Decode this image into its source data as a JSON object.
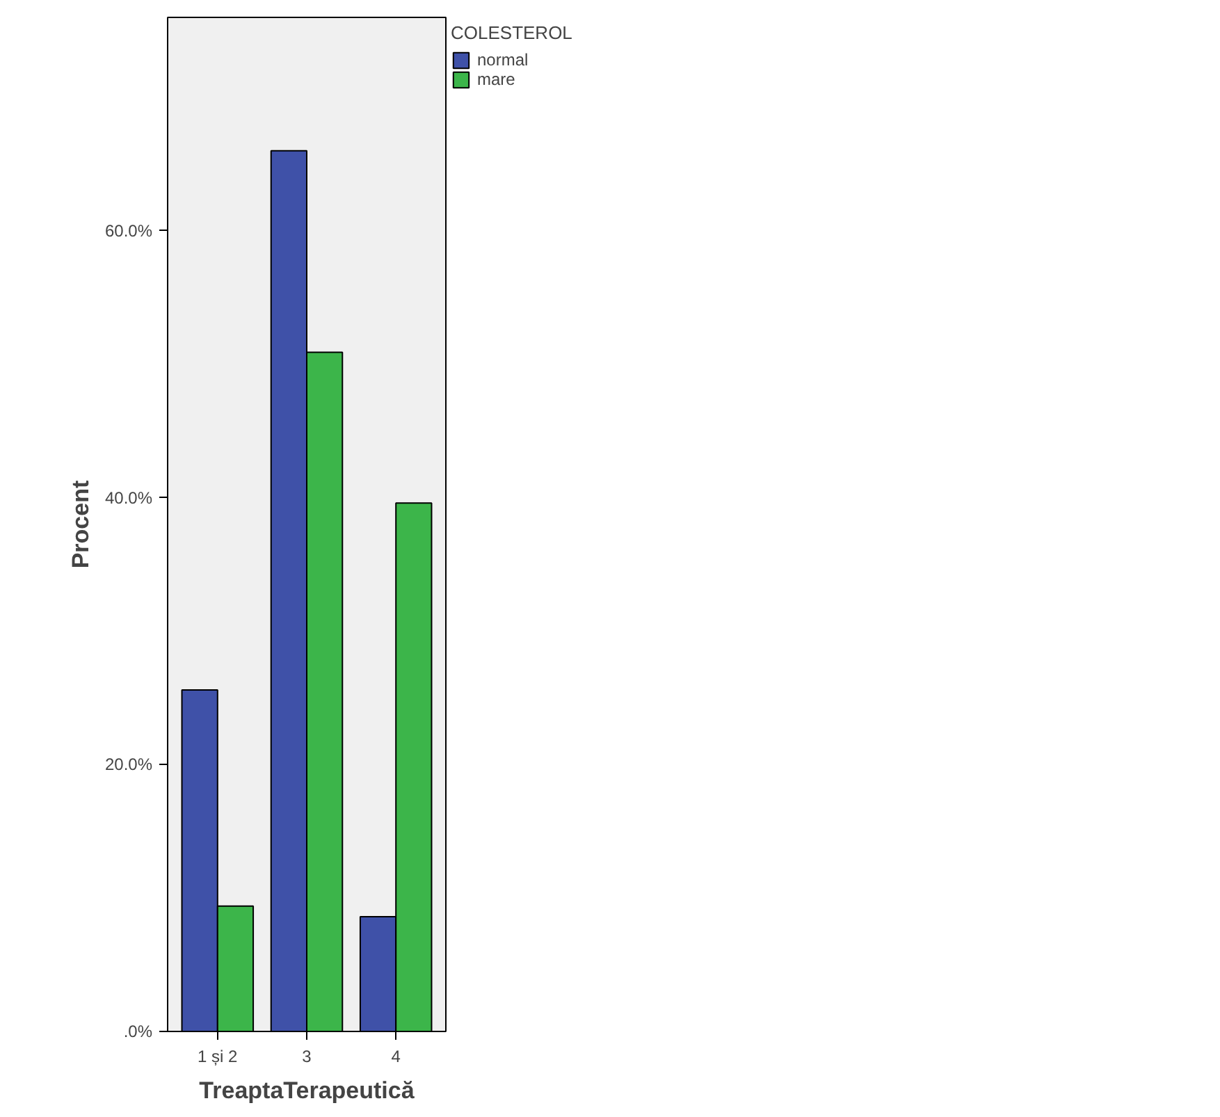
{
  "chart_data": {
    "type": "bar",
    "xlabel": "TreaptaTerapeutică",
    "ylabel": "Procent",
    "legend_title": "COLESTEROL",
    "categories": [
      "1 și 2",
      "3",
      "4"
    ],
    "series": [
      {
        "name": "normal",
        "color": "#3f51a8",
        "values": [
          25.6,
          66.0,
          8.6
        ]
      },
      {
        "name": "mare",
        "color": "#3cb54a",
        "values": [
          9.4,
          50.9,
          39.6
        ]
      }
    ],
    "ylim": [
      0,
      76
    ],
    "yticks": [
      {
        "value": 0,
        "label": ".0%"
      },
      {
        "value": 20,
        "label": "20.0%"
      },
      {
        "value": 40,
        "label": "40.0%"
      },
      {
        "value": 60,
        "label": "60.0%"
      }
    ],
    "grid": false,
    "legend": "right"
  }
}
